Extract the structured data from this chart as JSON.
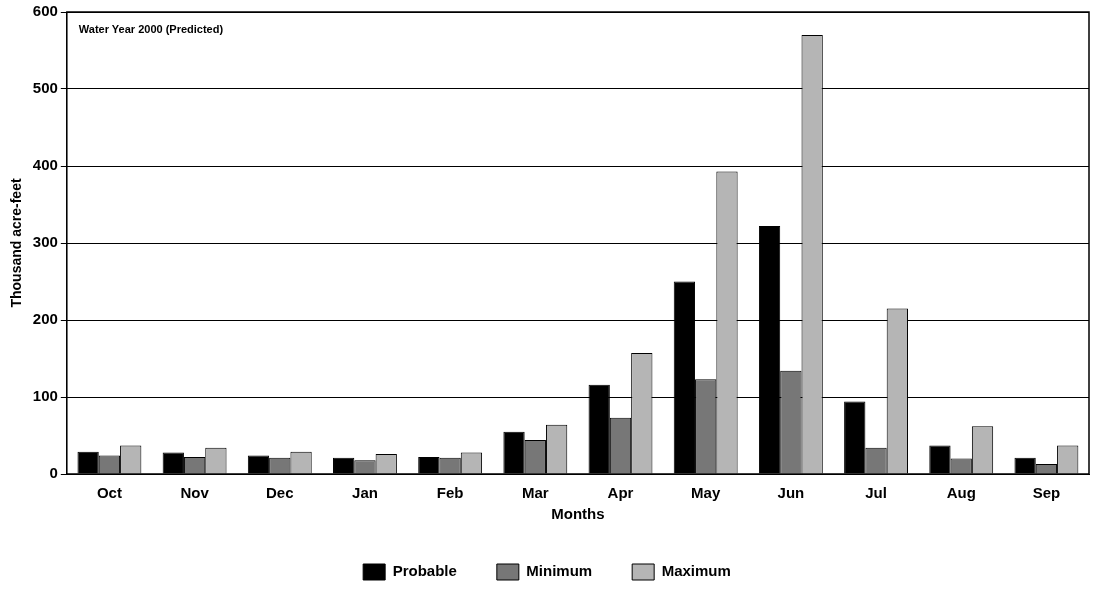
{
  "chart_data": {
    "type": "bar",
    "xlabel": "Months",
    "ylabel": "Thousand acre-feet",
    "annotations": [
      "Water Year 2000 (Predicted)"
    ],
    "categories": [
      "Oct",
      "Nov",
      "Dec",
      "Jan",
      "Feb",
      "Mar",
      "Apr",
      "May",
      "Jun",
      "Jul",
      "Aug",
      "Sep"
    ],
    "series": [
      {
        "name": "Probable",
        "color": "#000000",
        "values": [
          29,
          28,
          24,
          21,
          22,
          55,
          116,
          250,
          322,
          94,
          37,
          21
        ]
      },
      {
        "name": "Minimum",
        "color": "#777777",
        "values": [
          24,
          22,
          21,
          18,
          21,
          44,
          73,
          123,
          134,
          34,
          20,
          13
        ]
      },
      {
        "name": "Maximum",
        "color": "#b5b5b5",
        "values": [
          37,
          34,
          29,
          26,
          28,
          64,
          157,
          393,
          570,
          215,
          62,
          37
        ]
      }
    ],
    "ylim": [
      0,
      600
    ],
    "yticks": [
      0,
      100,
      200,
      300,
      400,
      500,
      600
    ],
    "grid": "y",
    "legend": "bottom"
  }
}
